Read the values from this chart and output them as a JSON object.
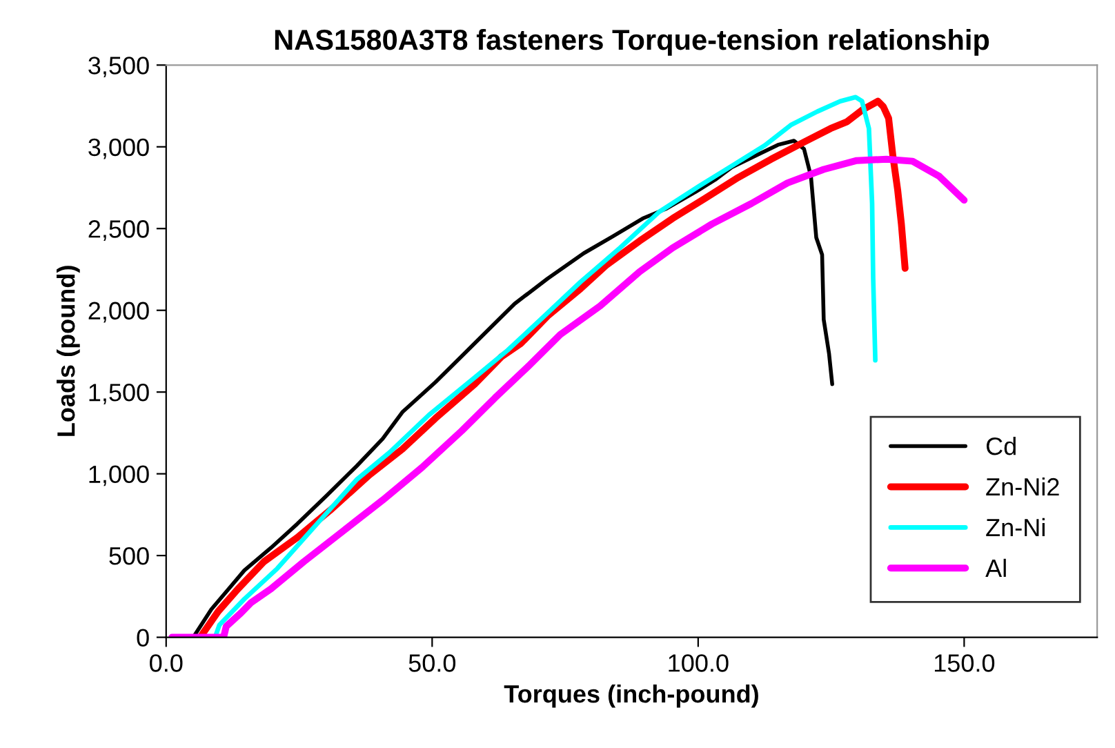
{
  "chart_data": {
    "type": "line",
    "title": "NAS1580A3T8 fasteners Torque-tension relationship",
    "xlabel": "Torques (inch-pound)",
    "ylabel": "Loads (pound)",
    "xlim": [
      0,
      175
    ],
    "xticks": [
      {
        "value": 0,
        "label": "0.0"
      },
      {
        "value": 50,
        "label": "50.0"
      },
      {
        "value": 100,
        "label": "100.0"
      },
      {
        "value": 150,
        "label": "150.0"
      }
    ],
    "ylim": [
      0,
      3500
    ],
    "yticks": [
      0,
      500,
      {
        "value": 1000,
        "label": "1,000"
      },
      {
        "value": 1500,
        "label": "1,500"
      },
      {
        "value": 2000,
        "label": "2,000"
      },
      {
        "value": 2500,
        "label": "2,500"
      },
      {
        "value": 3000,
        "label": "3,000"
      },
      {
        "value": 3500,
        "label": "3,500"
      }
    ],
    "grid": false,
    "legend": "lower right",
    "marker": "none",
    "line_style": "solid",
    "series": [
      {
        "name": "Cd",
        "color": "#000000",
        "x": [
          5.1,
          8.5,
          12.3,
          14.7,
          19.7,
          24.6,
          30.2,
          35.8,
          40.7,
          44.4,
          50.6,
          58,
          65.5,
          71.7,
          78.5,
          84,
          89.6,
          93.9,
          99.5,
          103.2,
          106.3,
          111.3,
          115,
          118,
          119.9,
          121.2,
          122.2,
          123.3,
          123.6,
          124.6,
          125.2
        ],
        "values": [
          0,
          171,
          317,
          409,
          547,
          692,
          868,
          1047,
          1214,
          1377,
          1560,
          1798,
          2040,
          2194,
          2349,
          2453,
          2562,
          2620,
          2724,
          2799,
          2874,
          2954,
          3012,
          3037,
          2987,
          2820,
          2445,
          2340,
          1944,
          1736,
          1548
        ]
      },
      {
        "name": "Zn-Ni2",
        "color": "#ff0000",
        "x": [
          6.4,
          9.8,
          13.5,
          18.4,
          24.6,
          30.8,
          38.2,
          44.4,
          50.6,
          58,
          63,
          66.7,
          71.7,
          77.9,
          82.8,
          89,
          95.2,
          101.4,
          107.5,
          113.7,
          119.9,
          124.9,
          128,
          131,
          133.8,
          134.8,
          135.8,
          136.6,
          137.5,
          138.2,
          138.9
        ],
        "values": [
          0,
          159,
          296,
          463,
          609,
          776,
          993,
          1151,
          1339,
          1548,
          1715,
          1798,
          1965,
          2132,
          2278,
          2424,
          2562,
          2687,
          2812,
          2924,
          3029,
          3112,
          3154,
          3229,
          3279,
          3246,
          3175,
          2945,
          2737,
          2528,
          2257
        ]
      },
      {
        "name": "Zn-Ni",
        "color": "#00ffff",
        "x": [
          9.2,
          10,
          14.7,
          20.9,
          28.3,
          35.8,
          42,
          49.4,
          58,
          64.2,
          70.4,
          77.9,
          85.3,
          92.7,
          100.1,
          106.3,
          112.5,
          117.4,
          122.4,
          126.7,
          129.6,
          130.8,
          132.1,
          132.7,
          132.9,
          133.3
        ],
        "values": [
          0,
          75,
          234,
          421,
          692,
          964,
          1131,
          1360,
          1589,
          1756,
          1944,
          2174,
          2382,
          2603,
          2758,
          2883,
          3008,
          3133,
          3216,
          3279,
          3304,
          3279,
          3112,
          2653,
          2194,
          1694
        ]
      },
      {
        "name": "Al",
        "color": "#ff00ff",
        "x": [
          1.1,
          10.8,
          11.3,
          14.1,
          16,
          19.7,
          25.9,
          33.3,
          40.7,
          48.1,
          55.6,
          61.8,
          67.9,
          74.1,
          81.6,
          89,
          95.2,
          102.6,
          110,
          116.8,
          123.6,
          129.8,
          135.4,
          140.3,
          145.3,
          150
        ],
        "values": [
          0,
          0,
          67,
          150,
          213,
          296,
          463,
          651,
          839,
          1039,
          1264,
          1464,
          1652,
          1852,
          2027,
          2236,
          2382,
          2528,
          2653,
          2779,
          2862,
          2916,
          2924,
          2912,
          2820,
          2674
        ]
      }
    ]
  }
}
